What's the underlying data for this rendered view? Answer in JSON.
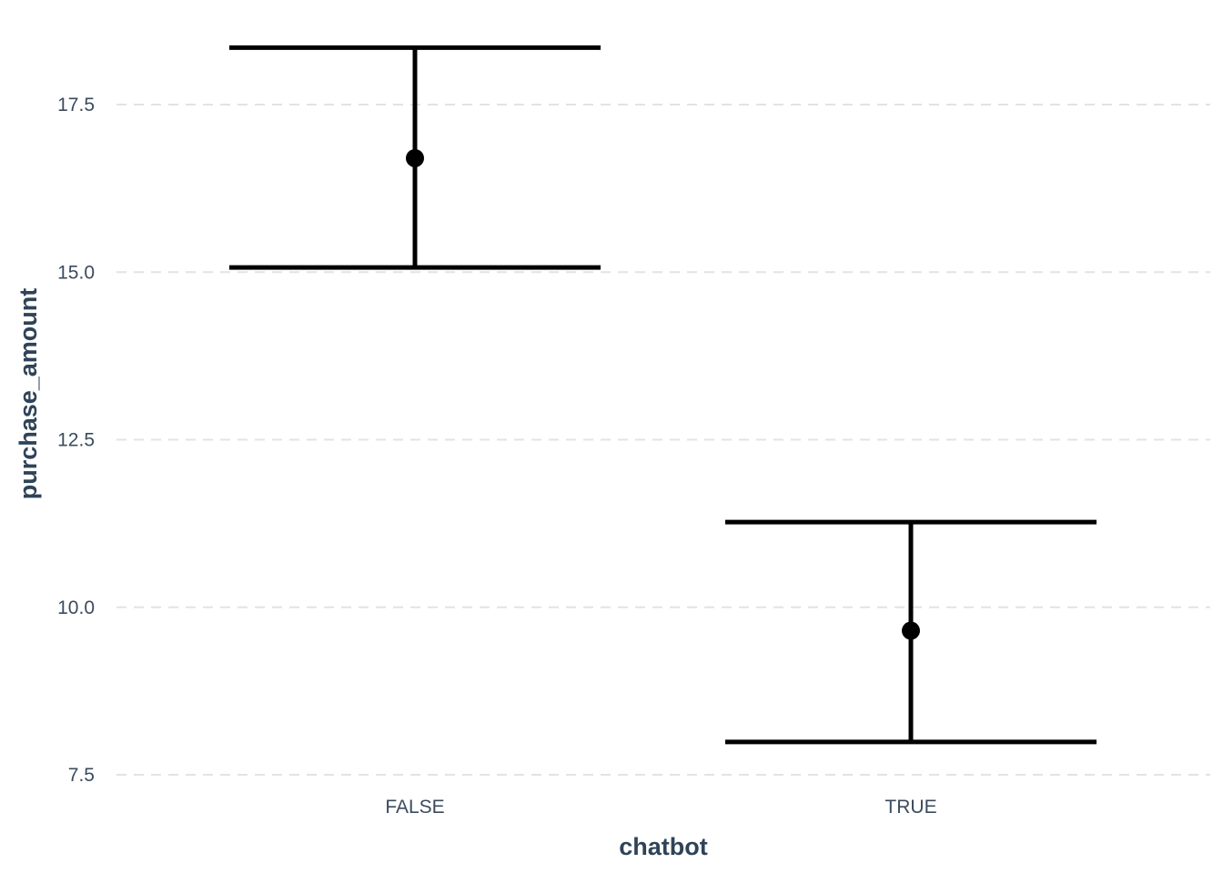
{
  "chart_data": {
    "type": "errorbar",
    "xlabel": "chatbot",
    "ylabel": "purchase_amount",
    "categories": [
      "FALSE",
      "TRUE"
    ],
    "series": [
      {
        "values": [
          16.7,
          9.65
        ],
        "lower": [
          15.07,
          7.99
        ],
        "upper": [
          18.35,
          11.27
        ]
      }
    ],
    "ylim": [
      7.3,
      18.7
    ],
    "yticks": [
      7.5,
      10.0,
      12.5,
      15.0,
      17.5
    ],
    "ytick_labels": [
      "7.5",
      "10.0",
      "12.5",
      "15.0",
      "17.5"
    ],
    "grid": "horizontal dashed",
    "legend": "none",
    "colors": {
      "mark": "#000000",
      "grid": "#e3e3e3",
      "text": "#3b4b5d",
      "title": "#2f4358"
    }
  }
}
